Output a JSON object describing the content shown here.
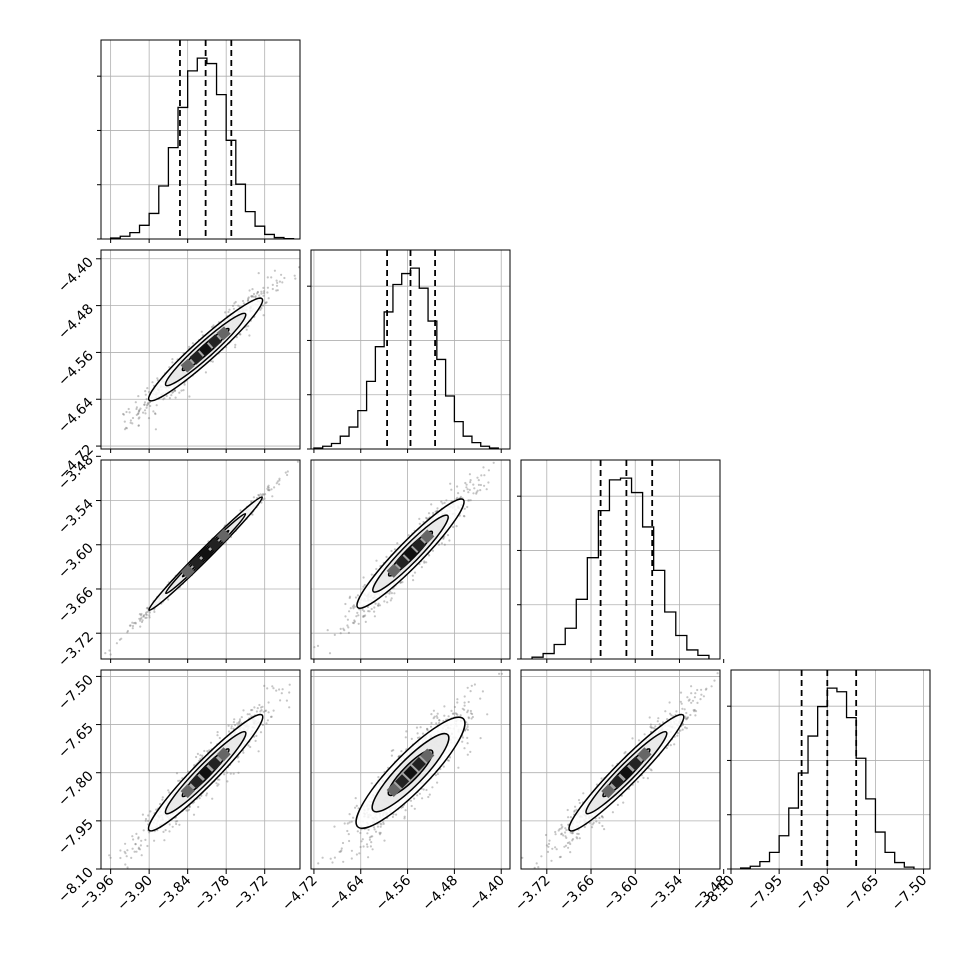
{
  "chart_data": {
    "type": "corner",
    "n_params": 4,
    "grid": true,
    "params": [
      {
        "index": 0,
        "range": [
          -3.975,
          -3.665
        ],
        "ticks": [
          -3.96,
          -3.9,
          -3.84,
          -3.78,
          -3.72
        ],
        "tick_labels": [
          "−3.96",
          "−3.90",
          "−3.84",
          "−3.78",
          "−3.72"
        ],
        "quantiles": [
          -3.852,
          -3.812,
          -3.772
        ],
        "hist": {
          "edges": [
            -3.96,
            -3.945,
            -3.93,
            -3.915,
            -3.9,
            -3.885,
            -3.87,
            -3.855,
            -3.84,
            -3.825,
            -3.81,
            -3.795,
            -3.78,
            -3.765,
            -3.75,
            -3.735,
            -3.72,
            -3.705,
            -3.69,
            -3.675
          ],
          "counts": [
            0.5,
            1.5,
            3.5,
            7.5,
            14,
            29,
            50,
            72,
            92,
            99,
            96,
            79,
            54,
            30,
            15,
            7,
            2.5,
            0.8,
            0.2
          ]
        }
      },
      {
        "index": 1,
        "range": [
          -4.725,
          -4.385
        ],
        "ticks": [
          -4.72,
          -4.64,
          -4.56,
          -4.48,
          -4.4
        ],
        "tick_labels": [
          "−4.72",
          "−4.64",
          "−4.56",
          "−4.48",
          "−4.40"
        ],
        "quantiles": [
          -4.595,
          -4.555,
          -4.513
        ],
        "hist": {
          "edges": [
            -4.72,
            -4.705,
            -4.69,
            -4.675,
            -4.66,
            -4.645,
            -4.63,
            -4.615,
            -4.6,
            -4.585,
            -4.57,
            -4.555,
            -4.54,
            -4.525,
            -4.51,
            -4.495,
            -4.48,
            -4.465,
            -4.45,
            -4.435,
            -4.42,
            -4.405
          ],
          "counts": [
            0.5,
            1.5,
            3,
            7,
            12,
            21,
            37,
            56,
            75,
            90,
            96,
            99,
            88,
            70,
            49,
            29,
            15,
            7,
            3.5,
            1.5,
            0.5
          ]
        }
      },
      {
        "index": 2,
        "range": [
          -3.755,
          -3.485
        ],
        "ticks": [
          -3.72,
          -3.66,
          -3.6,
          -3.54,
          -3.48
        ],
        "tick_labels": [
          "−3.72",
          "−3.66",
          "−3.60",
          "−3.54",
          "−3.48"
        ],
        "quantiles": [
          -3.647,
          -3.612,
          -3.577
        ],
        "hist": {
          "edges": [
            -3.74,
            -3.725,
            -3.71,
            -3.695,
            -3.68,
            -3.665,
            -3.65,
            -3.635,
            -3.62,
            -3.605,
            -3.59,
            -3.575,
            -3.56,
            -3.545,
            -3.53,
            -3.515,
            -3.5
          ],
          "counts": [
            1,
            3,
            8,
            17,
            33,
            56,
            82,
            99,
            100,
            92,
            73,
            49,
            26,
            13,
            5,
            2
          ]
        }
      },
      {
        "index": 3,
        "range": [
          -8.1,
          -7.48
        ],
        "ticks": [
          -8.1,
          -7.95,
          -7.8,
          -7.65,
          -7.5
        ],
        "tick_labels": [
          "−8.10",
          "−7.95",
          "−7.80",
          "−7.65",
          "−7.50"
        ],
        "quantiles": [
          -7.88,
          -7.8,
          -7.71
        ],
        "hist": {
          "edges": [
            -8.07,
            -8.04,
            -8.01,
            -7.98,
            -7.95,
            -7.92,
            -7.89,
            -7.86,
            -7.83,
            -7.8,
            -7.77,
            -7.74,
            -7.71,
            -7.68,
            -7.65,
            -7.62,
            -7.59,
            -7.56,
            -7.53
          ],
          "counts": [
            0.5,
            1.5,
            4,
            9,
            18,
            33,
            52,
            72,
            88,
            98,
            96,
            82,
            60,
            38,
            20,
            9,
            3.5,
            1
          ]
        }
      }
    ],
    "pair_correlations": [
      {
        "row": 1,
        "col": 0,
        "rho": 0.96
      },
      {
        "row": 2,
        "col": 0,
        "rho": 0.995
      },
      {
        "row": 2,
        "col": 1,
        "rho": 0.95
      },
      {
        "row": 3,
        "col": 0,
        "rho": 0.96
      },
      {
        "row": 3,
        "col": 1,
        "rho": 0.9
      },
      {
        "row": 3,
        "col": 2,
        "rho": 0.96
      }
    ],
    "colors": {
      "line": "#000000",
      "grid": "#b0b0b0",
      "scatter": "#7f7f7f"
    }
  }
}
